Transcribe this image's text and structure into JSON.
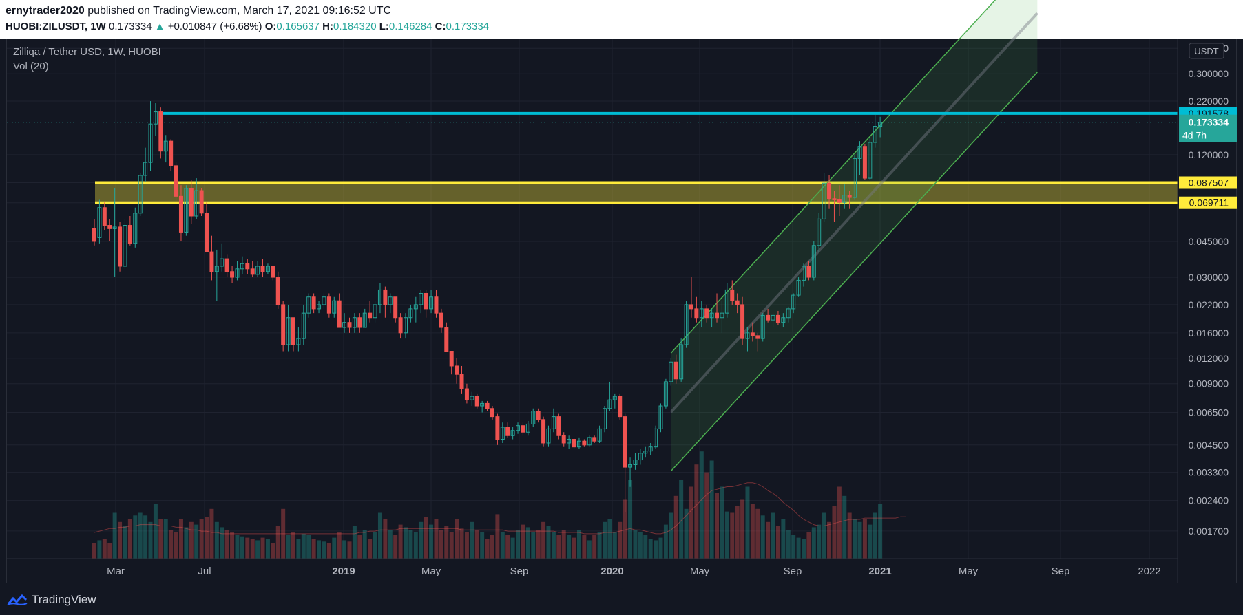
{
  "header": {
    "author": "ernytrader2020",
    "published_text": "published on TradingView.com, March 17, 2021 09:16:52 UTC",
    "symbol": "HUOBI:ZILUSDT, 1W",
    "last": "0.173334",
    "change": "+0.010847 (+6.68%)",
    "o_label": "O:",
    "o_value": "0.165637",
    "h_label": "H:",
    "h_value": "0.184320",
    "l_label": "L:",
    "l_value": "0.146284",
    "c_label": "C:",
    "c_value": "0.173334"
  },
  "legend": {
    "title": "Zilliqa / Tether USD, 1W, HUOBI",
    "indicator": "Vol (20)"
  },
  "footer": {
    "brand": "TradingView"
  },
  "colors": {
    "background": "#131722",
    "up": "#26a69a",
    "down": "#ef5350",
    "resistance": "#00bcd4",
    "zone": "#ffeb3b",
    "channel": "#4caf50"
  },
  "chart_data": {
    "type": "candlestick",
    "scale": "log",
    "currency": "USDT",
    "y_ticks": [
      "0.400000",
      "0.300000",
      "0.220000",
      "0.120000",
      "0.087507",
      "0.069711",
      "0.045000",
      "0.030000",
      "0.022000",
      "0.016000",
      "0.012000",
      "0.009000",
      "0.006500",
      "0.004500",
      "0.003300",
      "0.002400",
      "0.001700"
    ],
    "x_ticks": [
      "Mar",
      "Jul",
      "2019",
      "May",
      "Sep",
      "2020",
      "May",
      "Sep",
      "2021",
      "May",
      "Sep",
      "2022"
    ],
    "x_ticks_bold": [
      "2019",
      "2020",
      "2021"
    ],
    "price_labels": {
      "resistance": "0.191578",
      "last": "0.173334",
      "countdown": "4d 7h",
      "zone_top": "0.087507",
      "zone_bottom": "0.069711"
    },
    "levels": {
      "resistance": 0.191578,
      "last": 0.173334,
      "zone_top": 0.087507,
      "zone_bottom": 0.069711
    },
    "channel": {
      "start_week": 113,
      "start_price": 0.00335,
      "end_week": 174,
      "end_price": 0.155,
      "width_factor": 3.8
    },
    "candles": [
      [
        0.052,
        0.058,
        0.043,
        0.045
      ],
      [
        0.047,
        0.072,
        0.044,
        0.066
      ],
      [
        0.066,
        0.07,
        0.051,
        0.054
      ],
      [
        0.054,
        0.058,
        0.045,
        0.052
      ],
      [
        0.052,
        0.082,
        0.03,
        0.053
      ],
      [
        0.053,
        0.056,
        0.032,
        0.034
      ],
      [
        0.034,
        0.058,
        0.033,
        0.054
      ],
      [
        0.054,
        0.06,
        0.043,
        0.044
      ],
      [
        0.044,
        0.066,
        0.042,
        0.062
      ],
      [
        0.062,
        0.098,
        0.06,
        0.095
      ],
      [
        0.095,
        0.13,
        0.088,
        0.11
      ],
      [
        0.11,
        0.22,
        0.1,
        0.17
      ],
      [
        0.17,
        0.215,
        0.148,
        0.195
      ],
      [
        0.195,
        0.205,
        0.115,
        0.125
      ],
      [
        0.125,
        0.15,
        0.11,
        0.14
      ],
      [
        0.14,
        0.143,
        0.1,
        0.106
      ],
      [
        0.106,
        0.11,
        0.07,
        0.075
      ],
      [
        0.075,
        0.085,
        0.045,
        0.05
      ],
      [
        0.05,
        0.085,
        0.048,
        0.082
      ],
      [
        0.082,
        0.09,
        0.055,
        0.06
      ],
      [
        0.06,
        0.092,
        0.058,
        0.08
      ],
      [
        0.08,
        0.082,
        0.06,
        0.062
      ],
      [
        0.062,
        0.07,
        0.04,
        0.04
      ],
      [
        0.04,
        0.048,
        0.029,
        0.032
      ],
      [
        0.032,
        0.041,
        0.023,
        0.034
      ],
      [
        0.034,
        0.044,
        0.032,
        0.037
      ],
      [
        0.037,
        0.039,
        0.03,
        0.032
      ],
      [
        0.032,
        0.034,
        0.028,
        0.03
      ],
      [
        0.03,
        0.036,
        0.029,
        0.033
      ],
      [
        0.033,
        0.038,
        0.031,
        0.035
      ],
      [
        0.035,
        0.037,
        0.031,
        0.033
      ],
      [
        0.033,
        0.036,
        0.03,
        0.031
      ],
      [
        0.031,
        0.036,
        0.03,
        0.034
      ],
      [
        0.034,
        0.037,
        0.03,
        0.032
      ],
      [
        0.032,
        0.035,
        0.031,
        0.034
      ],
      [
        0.034,
        0.034,
        0.029,
        0.03
      ],
      [
        0.03,
        0.032,
        0.021,
        0.022
      ],
      [
        0.022,
        0.023,
        0.013,
        0.014
      ],
      [
        0.014,
        0.022,
        0.013,
        0.019
      ],
      [
        0.019,
        0.019,
        0.013,
        0.014
      ],
      [
        0.014,
        0.017,
        0.013,
        0.015
      ],
      [
        0.015,
        0.022,
        0.014,
        0.02
      ],
      [
        0.02,
        0.025,
        0.019,
        0.024
      ],
      [
        0.024,
        0.025,
        0.02,
        0.021
      ],
      [
        0.021,
        0.023,
        0.02,
        0.022
      ],
      [
        0.022,
        0.025,
        0.021,
        0.024
      ],
      [
        0.024,
        0.025,
        0.019,
        0.02
      ],
      [
        0.02,
        0.024,
        0.019,
        0.023
      ],
      [
        0.023,
        0.025,
        0.017,
        0.017
      ],
      [
        0.017,
        0.02,
        0.016,
        0.018
      ],
      [
        0.018,
        0.019,
        0.016,
        0.017
      ],
      [
        0.017,
        0.02,
        0.016,
        0.019
      ],
      [
        0.019,
        0.02,
        0.016,
        0.017
      ],
      [
        0.017,
        0.021,
        0.017,
        0.02
      ],
      [
        0.02,
        0.023,
        0.018,
        0.019
      ],
      [
        0.019,
        0.023,
        0.018,
        0.022
      ],
      [
        0.022,
        0.028,
        0.02,
        0.026
      ],
      [
        0.026,
        0.027,
        0.019,
        0.022
      ],
      [
        0.022,
        0.025,
        0.02,
        0.024
      ],
      [
        0.024,
        0.024,
        0.018,
        0.019
      ],
      [
        0.019,
        0.02,
        0.015,
        0.016
      ],
      [
        0.016,
        0.02,
        0.015,
        0.019
      ],
      [
        0.019,
        0.022,
        0.018,
        0.021
      ],
      [
        0.021,
        0.024,
        0.018,
        0.022
      ],
      [
        0.022,
        0.026,
        0.02,
        0.025
      ],
      [
        0.025,
        0.026,
        0.019,
        0.021
      ],
      [
        0.021,
        0.026,
        0.02,
        0.024
      ],
      [
        0.024,
        0.026,
        0.019,
        0.02
      ],
      [
        0.02,
        0.021,
        0.016,
        0.017
      ],
      [
        0.017,
        0.018,
        0.013,
        0.013
      ],
      [
        0.013,
        0.013,
        0.01,
        0.011
      ],
      [
        0.011,
        0.012,
        0.009,
        0.01
      ],
      [
        0.01,
        0.011,
        0.008,
        0.0085
      ],
      [
        0.0085,
        0.009,
        0.0072,
        0.0075
      ],
      [
        0.0075,
        0.0082,
        0.007,
        0.0078
      ],
      [
        0.0078,
        0.008,
        0.0068,
        0.007
      ],
      [
        0.007,
        0.0074,
        0.0065,
        0.0072
      ],
      [
        0.0072,
        0.0074,
        0.0066,
        0.0068
      ],
      [
        0.0068,
        0.007,
        0.006,
        0.0062
      ],
      [
        0.0062,
        0.0064,
        0.0045,
        0.0048
      ],
      [
        0.0048,
        0.0058,
        0.0046,
        0.0055
      ],
      [
        0.0055,
        0.0058,
        0.0049,
        0.005
      ],
      [
        0.005,
        0.0055,
        0.0048,
        0.0053
      ],
      [
        0.0053,
        0.0058,
        0.0051,
        0.0056
      ],
      [
        0.0056,
        0.0058,
        0.005,
        0.0052
      ],
      [
        0.0052,
        0.0059,
        0.005,
        0.0057
      ],
      [
        0.0057,
        0.0068,
        0.0055,
        0.0066
      ],
      [
        0.0066,
        0.0068,
        0.0058,
        0.006
      ],
      [
        0.006,
        0.0062,
        0.0044,
        0.0046
      ],
      [
        0.0046,
        0.0056,
        0.0044,
        0.0054
      ],
      [
        0.0054,
        0.0068,
        0.0052,
        0.0062
      ],
      [
        0.0062,
        0.0064,
        0.0048,
        0.005
      ],
      [
        0.005,
        0.0052,
        0.0044,
        0.0046
      ],
      [
        0.0046,
        0.005,
        0.0043,
        0.0048
      ],
      [
        0.0048,
        0.0049,
        0.0043,
        0.0044
      ],
      [
        0.0044,
        0.0049,
        0.0043,
        0.0047
      ],
      [
        0.0047,
        0.0048,
        0.0044,
        0.0045
      ],
      [
        0.0045,
        0.005,
        0.0044,
        0.0049
      ],
      [
        0.0049,
        0.005,
        0.0046,
        0.0047
      ],
      [
        0.0047,
        0.0056,
        0.0046,
        0.0054
      ],
      [
        0.0054,
        0.007,
        0.0052,
        0.0068
      ],
      [
        0.0068,
        0.0092,
        0.0066,
        0.0075
      ],
      [
        0.0075,
        0.008,
        0.0068,
        0.0078
      ],
      [
        0.0078,
        0.008,
        0.006,
        0.0062
      ],
      [
        0.0062,
        0.0064,
        0.0021,
        0.0035
      ],
      [
        0.0035,
        0.0039,
        0.0028,
        0.0036
      ],
      [
        0.0036,
        0.0041,
        0.0034,
        0.0038
      ],
      [
        0.0038,
        0.0043,
        0.0036,
        0.0041
      ],
      [
        0.0041,
        0.0044,
        0.0039,
        0.0042
      ],
      [
        0.0042,
        0.0046,
        0.004,
        0.0044
      ],
      [
        0.0044,
        0.0056,
        0.0043,
        0.0054
      ],
      [
        0.0054,
        0.0072,
        0.0052,
        0.007
      ],
      [
        0.007,
        0.0095,
        0.0068,
        0.0092
      ],
      [
        0.0092,
        0.012,
        0.0088,
        0.0115
      ],
      [
        0.0115,
        0.0125,
        0.009,
        0.0095
      ],
      [
        0.0095,
        0.015,
        0.0092,
        0.014
      ],
      [
        0.014,
        0.023,
        0.0135,
        0.022
      ],
      [
        0.022,
        0.03,
        0.019,
        0.021
      ],
      [
        0.021,
        0.024,
        0.018,
        0.019
      ],
      [
        0.019,
        0.023,
        0.017,
        0.021
      ],
      [
        0.021,
        0.022,
        0.018,
        0.019
      ],
      [
        0.019,
        0.021,
        0.017,
        0.02
      ],
      [
        0.02,
        0.025,
        0.018,
        0.019
      ],
      [
        0.019,
        0.023,
        0.016,
        0.02
      ],
      [
        0.02,
        0.028,
        0.019,
        0.026
      ],
      [
        0.026,
        0.029,
        0.022,
        0.023
      ],
      [
        0.023,
        0.025,
        0.02,
        0.022
      ],
      [
        0.022,
        0.024,
        0.014,
        0.015
      ],
      [
        0.015,
        0.017,
        0.013,
        0.016
      ],
      [
        0.016,
        0.018,
        0.0145,
        0.0155
      ],
      [
        0.0155,
        0.016,
        0.013,
        0.015
      ],
      [
        0.015,
        0.02,
        0.0145,
        0.0195
      ],
      [
        0.0195,
        0.021,
        0.018,
        0.0185
      ],
      [
        0.0185,
        0.02,
        0.017,
        0.0195
      ],
      [
        0.0195,
        0.0205,
        0.0175,
        0.018
      ],
      [
        0.018,
        0.02,
        0.017,
        0.019
      ],
      [
        0.019,
        0.0215,
        0.018,
        0.021
      ],
      [
        0.021,
        0.025,
        0.02,
        0.0245
      ],
      [
        0.0245,
        0.03,
        0.024,
        0.029
      ],
      [
        0.029,
        0.035,
        0.027,
        0.034
      ],
      [
        0.034,
        0.036,
        0.029,
        0.03
      ],
      [
        0.03,
        0.045,
        0.029,
        0.043
      ],
      [
        0.043,
        0.062,
        0.04,
        0.058
      ],
      [
        0.058,
        0.098,
        0.056,
        0.087
      ],
      [
        0.087,
        0.095,
        0.065,
        0.073
      ],
      [
        0.073,
        0.08,
        0.056,
        0.072
      ],
      [
        0.072,
        0.085,
        0.06,
        0.07
      ],
      [
        0.07,
        0.086,
        0.065,
        0.076
      ],
      [
        0.076,
        0.08,
        0.065,
        0.074
      ],
      [
        0.074,
        0.12,
        0.072,
        0.115
      ],
      [
        0.115,
        0.14,
        0.095,
        0.132
      ],
      [
        0.132,
        0.135,
        0.09,
        0.092
      ],
      [
        0.092,
        0.145,
        0.09,
        0.138
      ],
      [
        0.138,
        0.19,
        0.13,
        0.1656
      ],
      [
        0.1656,
        0.1843,
        0.1463,
        0.1733
      ]
    ],
    "volumes": [
      0.12,
      0.14,
      0.15,
      0.12,
      0.35,
      0.28,
      0.25,
      0.3,
      0.33,
      0.35,
      0.33,
      0.28,
      0.42,
      0.3,
      0.3,
      0.22,
      0.2,
      0.3,
      0.24,
      0.28,
      0.26,
      0.3,
      0.32,
      0.38,
      0.28,
      0.24,
      0.22,
      0.2,
      0.18,
      0.17,
      0.16,
      0.15,
      0.14,
      0.16,
      0.15,
      0.12,
      0.25,
      0.38,
      0.18,
      0.2,
      0.15,
      0.19,
      0.18,
      0.15,
      0.14,
      0.13,
      0.12,
      0.16,
      0.2,
      0.14,
      0.13,
      0.25,
      0.18,
      0.22,
      0.15,
      0.2,
      0.35,
      0.3,
      0.22,
      0.18,
      0.26,
      0.24,
      0.22,
      0.2,
      0.28,
      0.32,
      0.26,
      0.3,
      0.22,
      0.25,
      0.2,
      0.3,
      0.23,
      0.2,
      0.28,
      0.22,
      0.2,
      0.15,
      0.18,
      0.34,
      0.2,
      0.18,
      0.16,
      0.22,
      0.26,
      0.24,
      0.2,
      0.22,
      0.28,
      0.25,
      0.2,
      0.18,
      0.22,
      0.18,
      0.16,
      0.22,
      0.18,
      0.14,
      0.18,
      0.2,
      0.28,
      0.3,
      0.2,
      0.28,
      0.45,
      0.6,
      0.22,
      0.2,
      0.18,
      0.15,
      0.14,
      0.16,
      0.26,
      0.35,
      0.48,
      0.6,
      0.38,
      0.55,
      0.72,
      0.82,
      0.66,
      0.75,
      0.5,
      0.55,
      0.36,
      0.35,
      0.4,
      0.45,
      0.55,
      0.42,
      0.38,
      0.33,
      0.28,
      0.35,
      0.25,
      0.3,
      0.22,
      0.18,
      0.16,
      0.15,
      0.2,
      0.24,
      0.26,
      0.35,
      0.28,
      0.4,
      0.55,
      0.48,
      0.35,
      0.3,
      0.28,
      0.3,
      0.26,
      0.35,
      0.42,
      0.32,
      0.3,
      0.38,
      0.35,
      0.2
    ],
    "vol_ma": [
      0.2,
      0.21,
      0.22,
      0.23,
      0.23,
      0.24,
      0.24,
      0.25,
      0.25,
      0.26,
      0.26,
      0.26,
      0.26,
      0.25,
      0.25,
      0.25,
      0.24,
      0.24,
      0.23,
      0.22,
      0.22,
      0.21,
      0.21,
      0.2,
      0.2,
      0.19,
      0.19,
      0.19,
      0.19,
      0.19,
      0.19,
      0.19,
      0.19,
      0.19,
      0.19,
      0.19,
      0.19,
      0.19,
      0.19,
      0.19,
      0.19,
      0.19,
      0.19,
      0.19,
      0.19,
      0.19,
      0.19,
      0.19,
      0.19,
      0.19,
      0.19,
      0.19,
      0.2,
      0.2,
      0.21,
      0.21,
      0.22,
      0.22,
      0.22,
      0.22,
      0.23,
      0.23,
      0.23,
      0.23,
      0.23,
      0.23,
      0.23,
      0.23,
      0.23,
      0.23,
      0.23,
      0.23,
      0.22,
      0.22,
      0.22,
      0.22,
      0.22,
      0.22,
      0.22,
      0.22,
      0.22,
      0.21,
      0.21,
      0.21,
      0.21,
      0.21,
      0.21,
      0.21,
      0.21,
      0.21,
      0.21,
      0.2,
      0.2,
      0.2,
      0.2,
      0.2,
      0.19,
      0.19,
      0.19,
      0.19,
      0.2,
      0.2,
      0.2,
      0.21,
      0.22,
      0.23,
      0.22,
      0.22,
      0.21,
      0.2,
      0.19,
      0.19,
      0.2,
      0.22,
      0.25,
      0.29,
      0.33,
      0.37,
      0.41,
      0.45,
      0.49,
      0.52,
      0.53,
      0.54,
      0.55,
      0.55,
      0.56,
      0.57,
      0.58,
      0.58,
      0.57,
      0.55,
      0.52,
      0.5,
      0.47,
      0.43,
      0.4,
      0.37,
      0.33,
      0.3,
      0.28,
      0.26,
      0.25,
      0.25,
      0.26,
      0.27,
      0.28,
      0.29,
      0.3,
      0.3,
      0.3,
      0.31,
      0.31,
      0.31,
      0.31,
      0.31,
      0.31,
      0.31,
      0.32,
      0.32
    ]
  }
}
